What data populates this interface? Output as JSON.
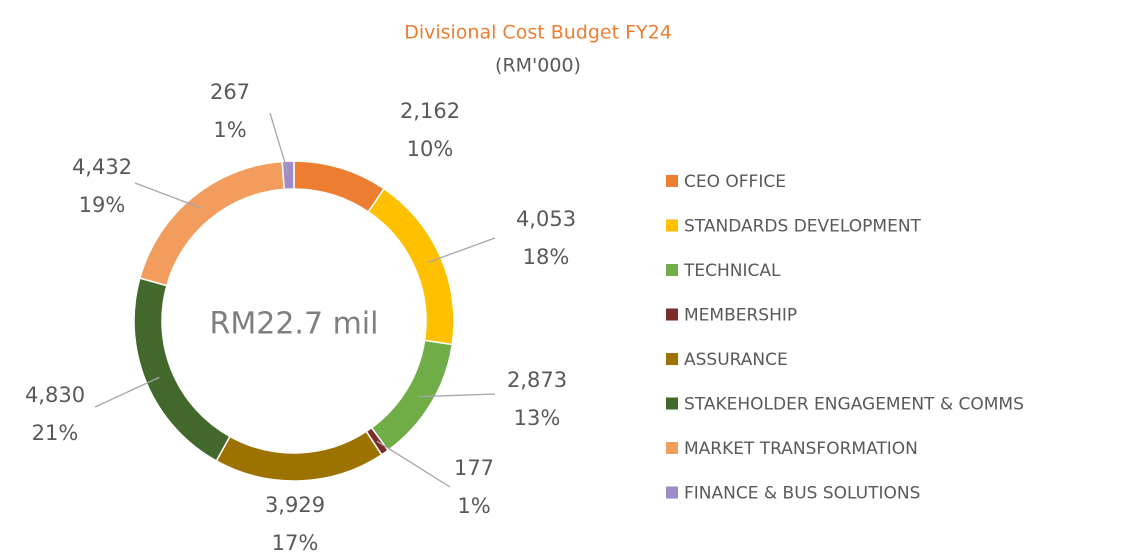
{
  "chart_data": {
    "type": "donut",
    "title": "Divisional Cost Budget FY24",
    "subtitle": "(RM'000)",
    "center_label": "RM22.7 mil",
    "categories": [
      "CEO OFFICE",
      "STANDARDS DEVELOPMENT",
      "TECHNICAL",
      "MEMBERSHIP",
      "ASSURANCE",
      "STAKEHOLDER ENGAGEMENT & COMMS",
      "MARKET TRANSFORMATION",
      "FINANCE & BUS SOLUTIONS"
    ],
    "values": [
      2162,
      4053,
      2873,
      177,
      3929,
      4830,
      4432,
      267
    ],
    "value_labels": [
      "2,162",
      "4,053",
      "2,873",
      "177",
      "3,929",
      "4,830",
      "4,432",
      "267"
    ],
    "percents": [
      10,
      18,
      13,
      1,
      17,
      21,
      19,
      1
    ],
    "percent_labels": [
      "10%",
      "18%",
      "13%",
      "1%",
      "17%",
      "21%",
      "19%",
      "1%"
    ],
    "colors": [
      "#ED7D31",
      "#FFC000",
      "#70AD47",
      "#7B2C2C",
      "#9C7300",
      "#43682B",
      "#F29D5E",
      "#A08AC8"
    ],
    "legend": "right"
  }
}
